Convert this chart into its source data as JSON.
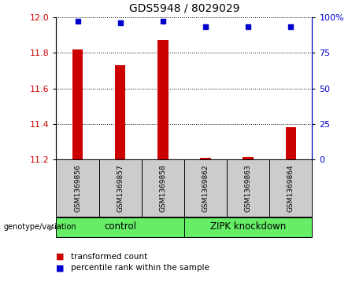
{
  "title": "GDS5948 / 8029029",
  "samples": [
    "GSM1369856",
    "GSM1369857",
    "GSM1369858",
    "GSM1369862",
    "GSM1369863",
    "GSM1369864"
  ],
  "red_values": [
    11.82,
    11.73,
    11.87,
    11.21,
    11.215,
    11.38
  ],
  "blue_values": [
    97,
    96,
    97,
    93,
    93,
    93
  ],
  "ylim_left": [
    11.2,
    12.0
  ],
  "ylim_right": [
    0,
    100
  ],
  "yticks_left": [
    11.2,
    11.4,
    11.6,
    11.8,
    12.0
  ],
  "yticks_right": [
    0,
    25,
    50,
    75,
    100
  ],
  "bar_color": "#cc0000",
  "dot_color": "#0000cc",
  "bg_color": "#cccccc",
  "green_color": "#66ee66",
  "left_axis_color": "#cc0000",
  "right_axis_color": "#0000cc",
  "legend_red_label": "transformed count",
  "legend_blue_label": "percentile rank within the sample",
  "genotype_label": "genotype/variation",
  "control_label": "control",
  "knockdown_label": "ZIPK knockdown",
  "control_samples": [
    0,
    1,
    2
  ],
  "knockdown_samples": [
    3,
    4,
    5
  ]
}
